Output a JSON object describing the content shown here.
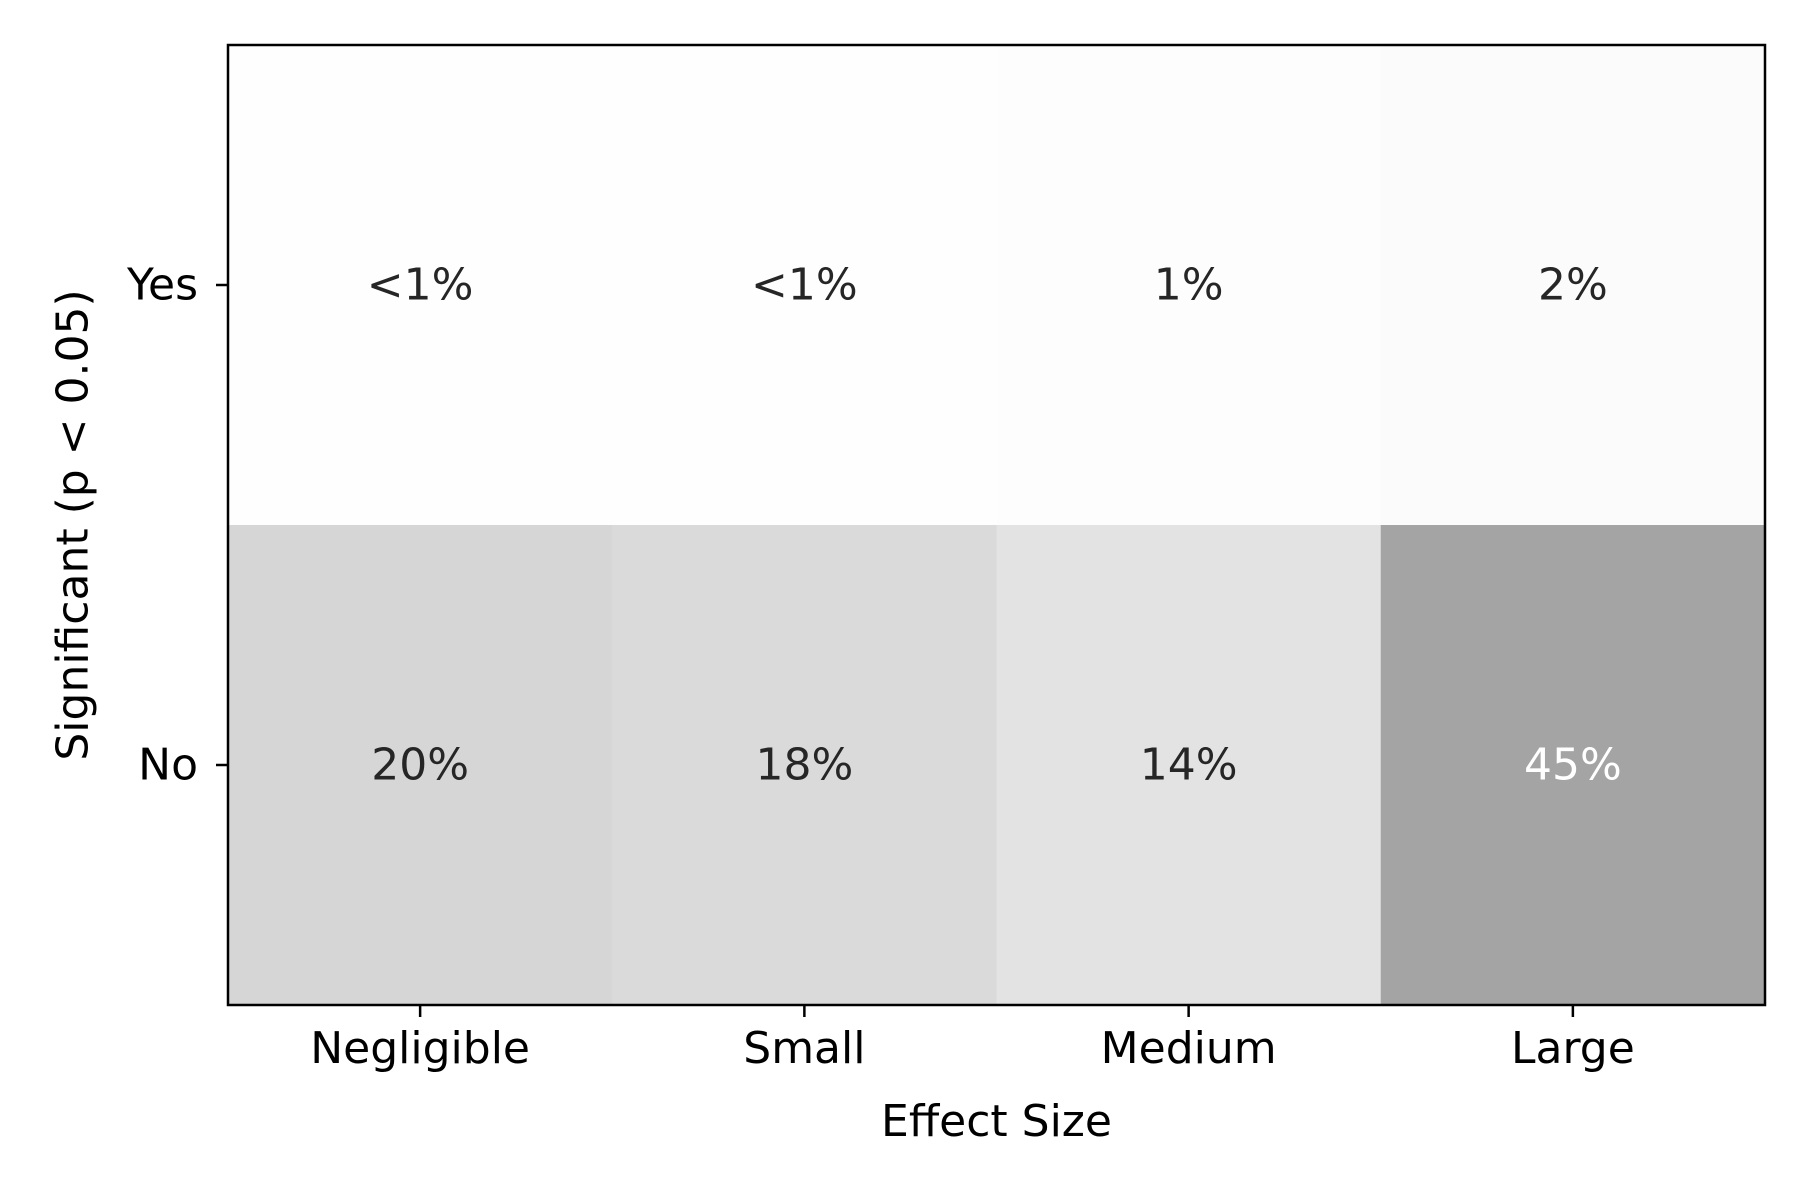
{
  "chart_data": {
    "type": "heatmap",
    "title": "",
    "xlabel": "Effect Size",
    "ylabel": "Significant (p < 0.05)",
    "x_categories": [
      "Negligible",
      "Small",
      "Medium",
      "Large"
    ],
    "y_categories": [
      "Yes",
      "No"
    ],
    "cells": [
      [
        {
          "value": 0.3,
          "label": "<1%"
        },
        {
          "value": 0.3,
          "label": "<1%"
        },
        {
          "value": 1,
          "label": "1%"
        },
        {
          "value": 2,
          "label": "2%"
        }
      ],
      [
        {
          "value": 20,
          "label": "20%"
        },
        {
          "value": 18,
          "label": "18%"
        },
        {
          "value": 14,
          "label": "14%"
        },
        {
          "value": 45,
          "label": "45%"
        }
      ]
    ],
    "colormap": "Greys",
    "value_range": [
      0,
      100
    ],
    "colors": {
      "cell_text_dark": "#262626",
      "cell_text_light": "#ffffff",
      "axis": "#000000"
    },
    "grid": false,
    "legend": "none"
  }
}
